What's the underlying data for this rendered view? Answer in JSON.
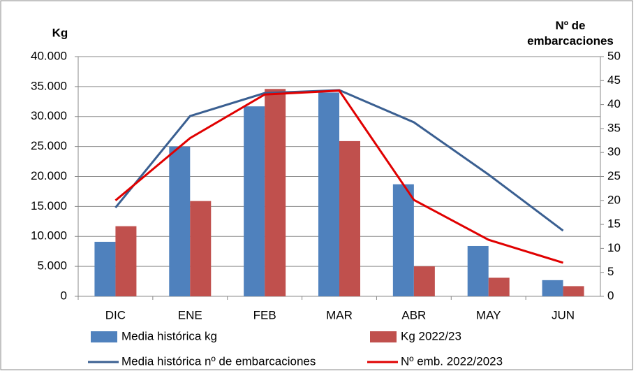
{
  "chart_data": {
    "type": "combo",
    "y_label": "Kg",
    "y2_label": "Nº de embarcaciones",
    "categories": [
      "DIC",
      "ENE",
      "FEB",
      "MAR",
      "ABR",
      "MAY",
      "JUN"
    ],
    "series": [
      {
        "name": "Media histórica kg",
        "type": "bar",
        "color": "#4f81bd",
        "values": [
          9100,
          25000,
          31700,
          34000,
          18700,
          8400,
          2700
        ]
      },
      {
        "name": "Kg 2022/23",
        "type": "bar",
        "color": "#c0504d",
        "values": [
          11700,
          15900,
          34600,
          25900,
          5000,
          3100,
          1700
        ]
      },
      {
        "name": "Media histórica nº de embarcaciones",
        "type": "line",
        "axis": "y2",
        "color": "#3a5f91",
        "values": [
          18.5,
          37.6,
          42.4,
          43,
          36.3,
          25.4,
          13.7
        ]
      },
      {
        "name": "Nº emb. 2022/2023",
        "type": "line",
        "axis": "y2",
        "color": "#e00000",
        "values": [
          20,
          33,
          42.1,
          42.9,
          20.1,
          11.8,
          7
        ]
      }
    ],
    "ylim": [
      0,
      40000
    ],
    "yticks": [
      0,
      {
        "value": 5000,
        "label": "5.000"
      },
      {
        "value": 10000,
        "label": "10.000"
      },
      {
        "value": 15000,
        "label": "15.000"
      },
      {
        "value": 20000,
        "label": "20.000"
      },
      {
        "value": 25000,
        "label": "25.000"
      },
      {
        "value": 30000,
        "label": "30.000"
      },
      {
        "value": 35000,
        "label": "35.000"
      },
      {
        "value": 40000,
        "label": "40.000"
      }
    ],
    "y2lim": [
      0,
      50
    ],
    "y2ticks": [
      0,
      5,
      10,
      15,
      20,
      25,
      30,
      35,
      40,
      45,
      50
    ],
    "grid": true
  }
}
